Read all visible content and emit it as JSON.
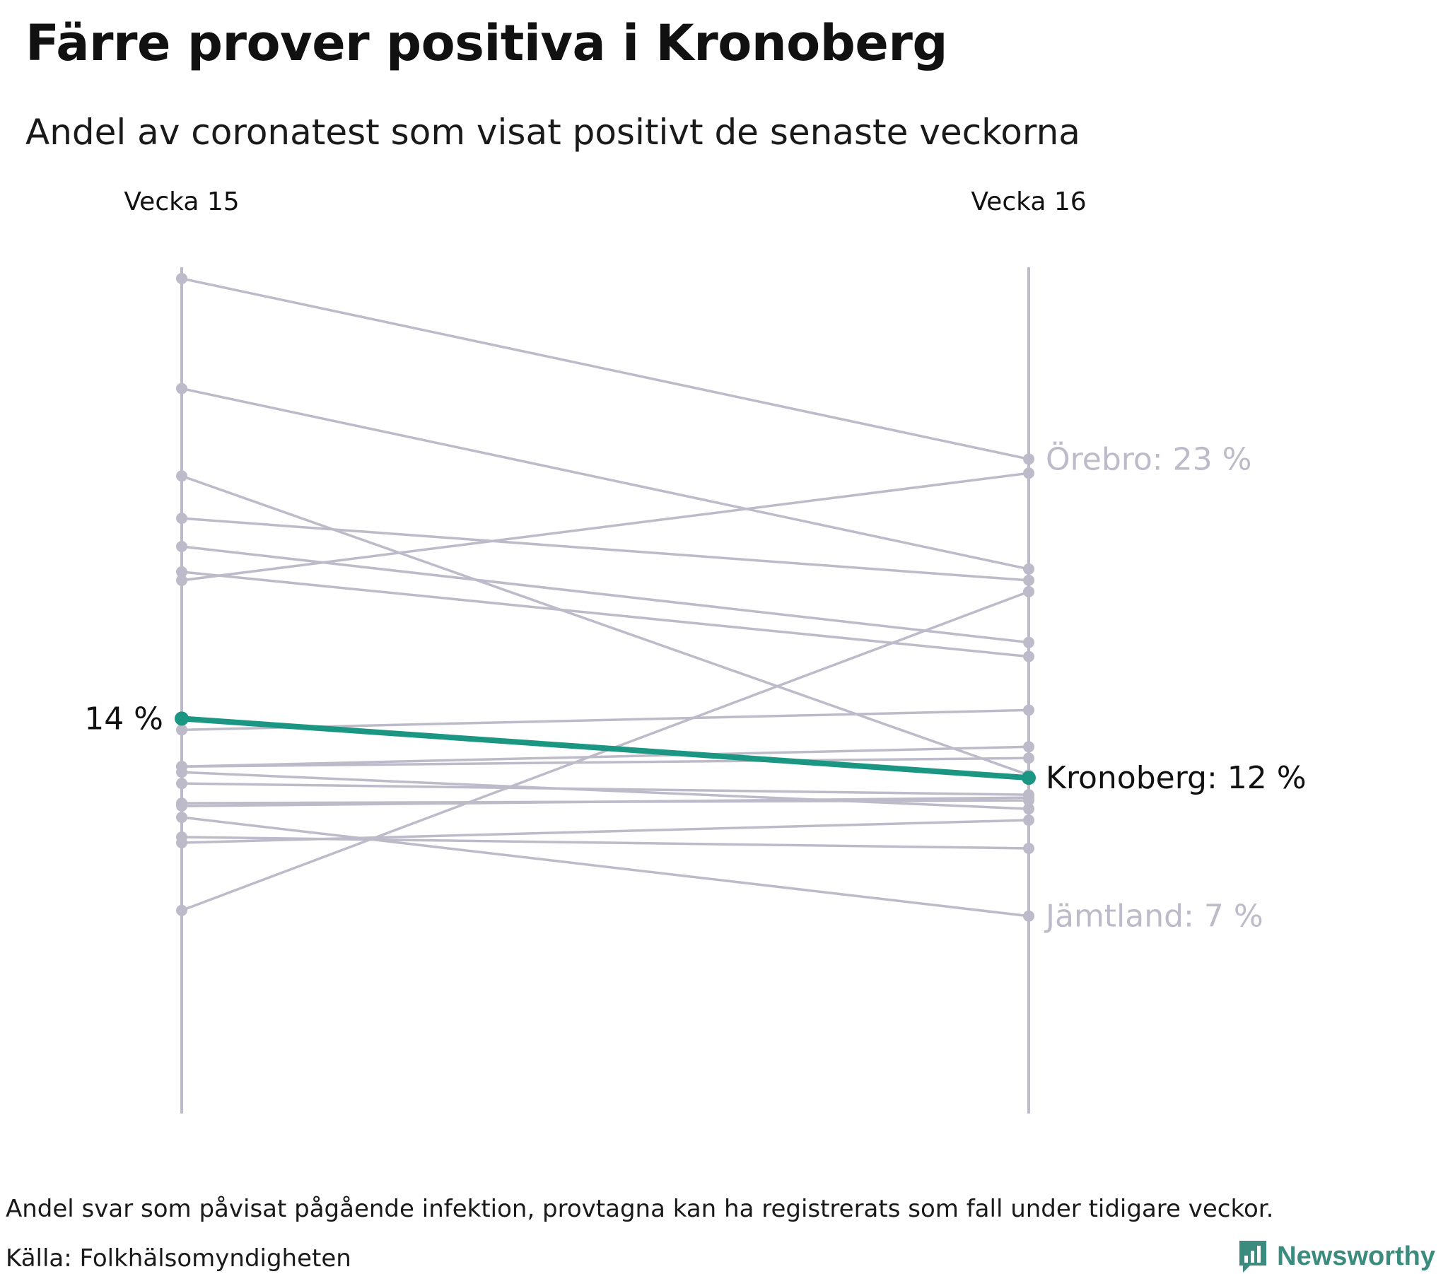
{
  "title": "Färre prover positiva i Kronoberg",
  "subtitle": "Andel av coronatest som visat positivt de senaste veckorna",
  "notes": "Andel svar som påvisat pågående infektion, provtagna kan ha registrerats som fall under tidigare veckor.",
  "source": "Källa: Folkhälsomyndigheten",
  "brand": "Newsworthy",
  "colors": {
    "highlight": "#1a9683",
    "muted": "#bdbbc9",
    "text": "#111111",
    "brand": "#3b8c7e"
  },
  "chart_data": {
    "type": "slope",
    "x": [
      "Vecka 15",
      "Vecka 16"
    ],
    "ylim": [
      0,
      30
    ],
    "series": [
      {
        "name": "Örebro",
        "values": [
          29.6,
          23.2
        ],
        "label": "Örebro: 23 %",
        "label_style": "muted"
      },
      {
        "name": "Kronoberg",
        "values": [
          14.0,
          11.9
        ],
        "highlight": true,
        "start_label": "14 %",
        "label": "Kronoberg: 12 %"
      },
      {
        "name": "Jämtland",
        "values": [
          10.5,
          7.0
        ],
        "label": "Jämtland: 7 %",
        "label_style": "muted"
      },
      {
        "values": [
          25.7,
          19.3
        ]
      },
      {
        "values": [
          22.6,
          12.0
        ]
      },
      {
        "values": [
          21.1,
          18.9
        ]
      },
      {
        "values": [
          20.1,
          16.7
        ]
      },
      {
        "values": [
          19.2,
          16.2
        ]
      },
      {
        "values": [
          18.9,
          22.7
        ]
      },
      {
        "values": [
          13.6,
          14.3
        ]
      },
      {
        "values": [
          12.3,
          13.0
        ]
      },
      {
        "values": [
          12.3,
          12.6
        ]
      },
      {
        "values": [
          12.1,
          10.8
        ]
      },
      {
        "values": [
          11.7,
          11.3
        ]
      },
      {
        "values": [
          11.0,
          11.1
        ]
      },
      {
        "values": [
          10.9,
          11.2
        ]
      },
      {
        "values": [
          9.8,
          9.4
        ]
      },
      {
        "values": [
          9.6,
          10.4
        ]
      },
      {
        "values": [
          7.2,
          18.5
        ]
      }
    ]
  }
}
